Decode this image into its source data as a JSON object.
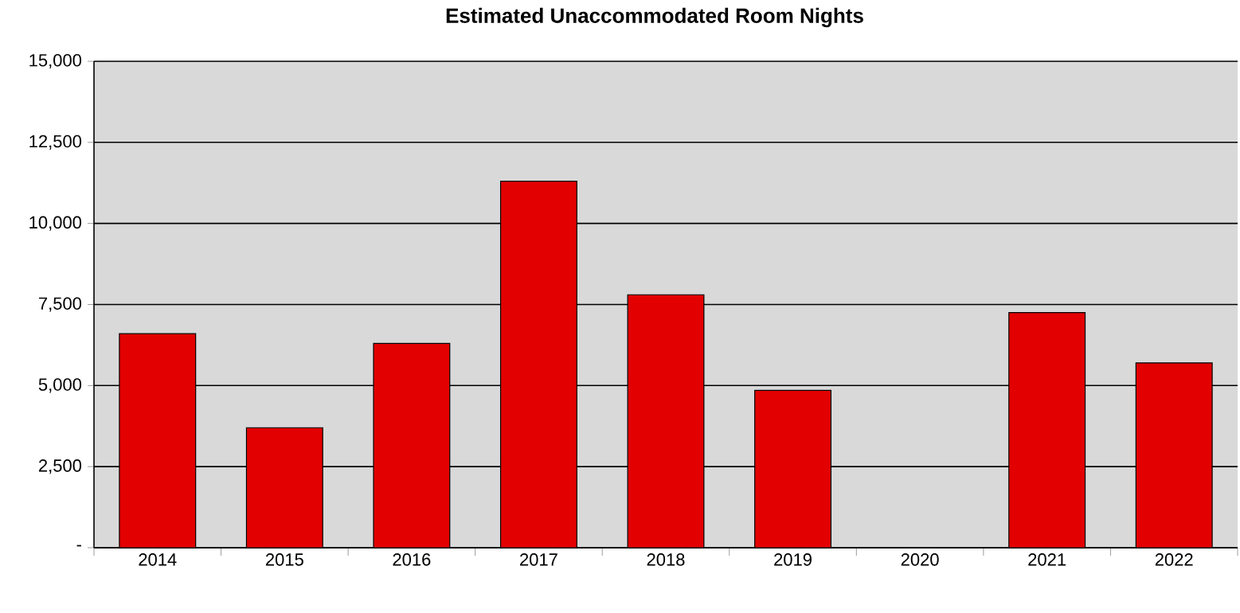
{
  "chart_data": {
    "type": "bar",
    "title": "Estimated Unaccommodated Room Nights",
    "categories": [
      "2014",
      "2015",
      "2016",
      "2017",
      "2018",
      "2019",
      "2020",
      "2021",
      "2022"
    ],
    "values": [
      6600,
      3700,
      6300,
      11300,
      7800,
      4850,
      null,
      7250,
      5700
    ],
    "color": "#e30000",
    "ylim": [
      0,
      15000
    ],
    "yticks": [
      {
        "value": 0,
        "label": "-"
      },
      {
        "value": 2500,
        "label": "2,500"
      },
      {
        "value": 5000,
        "label": "5,000"
      },
      {
        "value": 7500,
        "label": "7,500"
      },
      {
        "value": 10000,
        "label": "10,000"
      },
      {
        "value": 12500,
        "label": "12,500"
      },
      {
        "value": 15000,
        "label": "15,000"
      }
    ],
    "grid": "y"
  }
}
